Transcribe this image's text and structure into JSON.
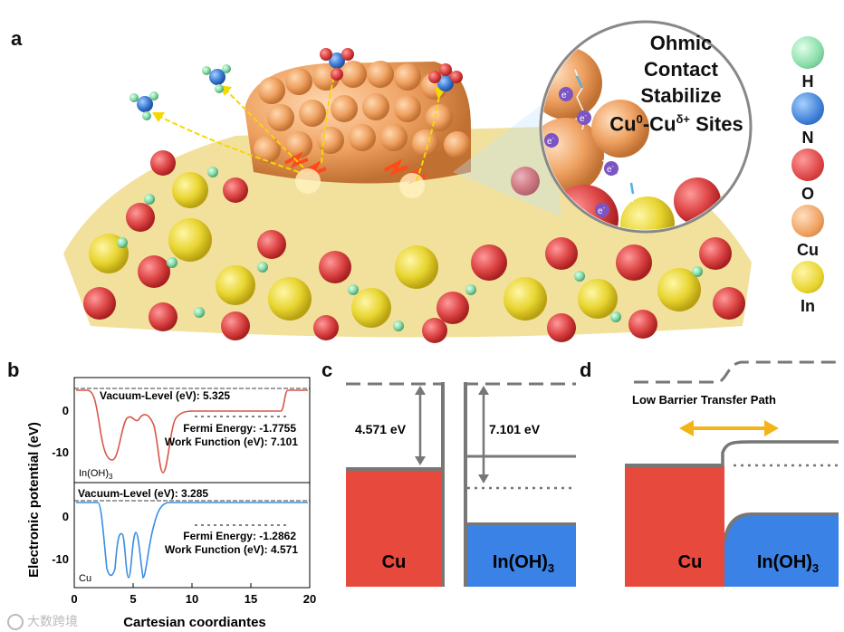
{
  "panels": {
    "a": "a",
    "b": "b",
    "c": "c",
    "d": "d"
  },
  "panel_a": {
    "inset_lines": [
      "Ohmic",
      "Contact",
      "Stabilize"
    ],
    "inset_sites": {
      "pre": "Cu",
      "sup0": "0",
      "mid": "-Cu",
      "supd": "δ+",
      "post": " Sites"
    },
    "electron": "e",
    "electron_sup": "-",
    "legend": [
      {
        "label": "H",
        "color": "#7fd6a0"
      },
      {
        "label": "N",
        "color": "#3f7fd6"
      },
      {
        "label": "O",
        "color": "#e05a5a"
      },
      {
        "label": "Cu",
        "color": "#f0a86a"
      },
      {
        "label": "In",
        "color": "#e6d840"
      }
    ]
  },
  "panel_b": {
    "ylabel": "Electronic potential (eV)",
    "xlabel": "Cartesian coordiantes",
    "xticks": [
      "0",
      "5",
      "10",
      "15",
      "20"
    ],
    "top": {
      "name": "In(OH)",
      "name_sub": "3",
      "vacuum": "Vacuum-Level (eV): 5.325",
      "fermi": "Fermi Energy:  -1.7755",
      "work": "Work Function (eV): 7.101",
      "yticks": [
        "0",
        "-10"
      ]
    },
    "bottom": {
      "name": "Cu",
      "vacuum": "Vacuum-Level (eV): 3.285",
      "fermi": "Fermi Energy: -1.2862",
      "work": "Work Function (eV): 4.571",
      "yticks": [
        "0",
        "-10"
      ]
    }
  },
  "panel_c": {
    "cu_label": "Cu",
    "inoh_label": "In(OH)",
    "inoh_sub": "3",
    "wf_cu": "4.571 eV",
    "wf_inoh": "7.101 eV"
  },
  "panel_d": {
    "path_label": "Low Barrier Transfer Path",
    "cu_label": "Cu",
    "inoh_label": "In(OH)",
    "inoh_sub": "3"
  },
  "watermark": "大数跨境",
  "colors": {
    "red": "#e8493d",
    "blue": "#3a82e6",
    "gray": "#777777",
    "orange": "#f2b418"
  }
}
